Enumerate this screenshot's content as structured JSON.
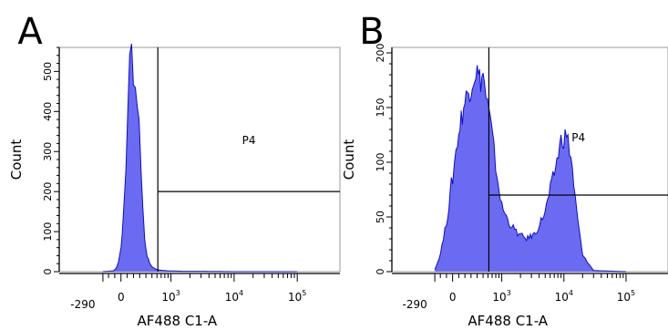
{
  "colors": {
    "fill": "#6b6bf2",
    "stroke": "#0b0bd6",
    "axis": "#000000",
    "gate": "#000000"
  },
  "chart_data": [
    {
      "panel_letter": "A",
      "type": "area",
      "title": "",
      "xlabel": "AF488 C1-A",
      "ylabel": "Count",
      "x_scale": "biexponential",
      "x_tick_labels": [
        "-290",
        "0",
        "10^3",
        "10^4",
        "10^5"
      ],
      "y_ticks": [
        0,
        100,
        200,
        300,
        400,
        500
      ],
      "ylim": [
        0,
        560
      ],
      "gate": {
        "label": "P4",
        "threshold_x": 620,
        "count_line": 200
      },
      "series": [
        {
          "x": [
            -290,
            -120,
            -80,
            -40,
            0,
            40,
            80,
            110,
            140,
            170,
            200,
            230,
            260,
            290,
            320,
            350,
            380,
            420,
            460,
            520,
            580,
            650,
            750,
            900,
            1500,
            3000,
            10000,
            40000,
            100000
          ],
          "values": [
            0,
            2,
            8,
            25,
            60,
            140,
            260,
            420,
            520,
            555,
            500,
            460,
            430,
            370,
            270,
            160,
            80,
            40,
            20,
            10,
            6,
            4,
            3,
            2,
            1,
            1,
            0,
            0,
            0
          ]
        }
      ]
    },
    {
      "panel_letter": "B",
      "type": "area",
      "title": "",
      "xlabel": "AF488 C1-A",
      "ylabel": "Count",
      "x_scale": "biexponential",
      "x_tick_labels": [
        "-290",
        "0",
        "10^3",
        "10^4",
        "10^5"
      ],
      "y_ticks": [
        0,
        50,
        100,
        150,
        200
      ],
      "ylim": [
        0,
        205
      ],
      "gate": {
        "label": "P4",
        "threshold_x": 620,
        "count_line": 70
      },
      "series": [
        {
          "x": [
            -290,
            -220,
            -150,
            -100,
            -60,
            -20,
            0,
            30,
            80,
            140,
            200,
            260,
            320,
            380,
            440,
            500,
            560,
            620,
            680,
            750,
            850,
            1000,
            1300,
            1800,
            2500,
            3500,
            5000,
            7000,
            9000,
            11000,
            13000,
            16000,
            20000,
            30000,
            100000
          ],
          "values": [
            2,
            12,
            30,
            45,
            60,
            80,
            85,
            100,
            120,
            140,
            155,
            165,
            175,
            185,
            175,
            180,
            160,
            145,
            130,
            110,
            85,
            60,
            45,
            35,
            30,
            35,
            55,
            90,
            120,
            125,
            105,
            55,
            15,
            1,
            0
          ]
        }
      ]
    }
  ]
}
